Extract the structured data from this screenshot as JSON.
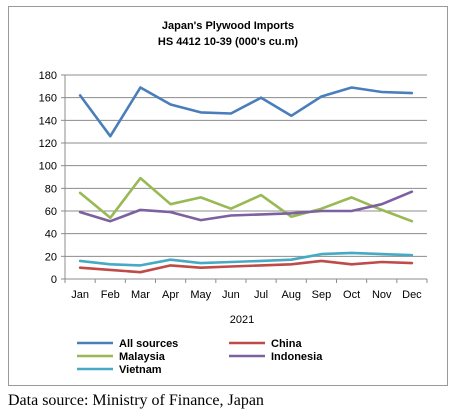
{
  "chart_data": {
    "type": "line",
    "title": "Japan's Plywood Imports",
    "subtitle": "HS 4412 10-39  (000's cu.m)",
    "xlabel": "2021",
    "ylabel": "",
    "categories": [
      "Jan",
      "Feb",
      "Mar",
      "Apr",
      "May",
      "Jun",
      "Jul",
      "Aug",
      "Sep",
      "Oct",
      "Nov",
      "Dec"
    ],
    "ylim": [
      0,
      180
    ],
    "yticks": [
      0,
      20,
      40,
      60,
      80,
      100,
      120,
      140,
      160,
      180
    ],
    "grid": true,
    "legend": "bottom",
    "series": [
      {
        "name": "All sources",
        "color": "#4a7ebb",
        "values": [
          162,
          126,
          169,
          154,
          147,
          146,
          160,
          144,
          161,
          169,
          165,
          164
        ]
      },
      {
        "name": "China",
        "color": "#be4b48",
        "values": [
          10,
          8,
          6,
          12,
          10,
          11,
          12,
          13,
          16,
          13,
          15,
          14
        ]
      },
      {
        "name": "Malaysia",
        "color": "#98b954",
        "values": [
          76,
          54,
          89,
          66,
          72,
          62,
          74,
          55,
          62,
          72,
          61,
          51
        ]
      },
      {
        "name": "Indonesia",
        "color": "#7d60a0",
        "values": [
          59,
          51,
          61,
          59,
          52,
          56,
          57,
          58,
          60,
          60,
          66,
          77
        ]
      },
      {
        "name": "Vietnam",
        "color": "#46aac5",
        "values": [
          16,
          13,
          12,
          17,
          14,
          15,
          16,
          17,
          22,
          23,
          22,
          21
        ]
      }
    ]
  },
  "footer": {
    "source": "Data source: Ministry of Finance, Japan"
  }
}
